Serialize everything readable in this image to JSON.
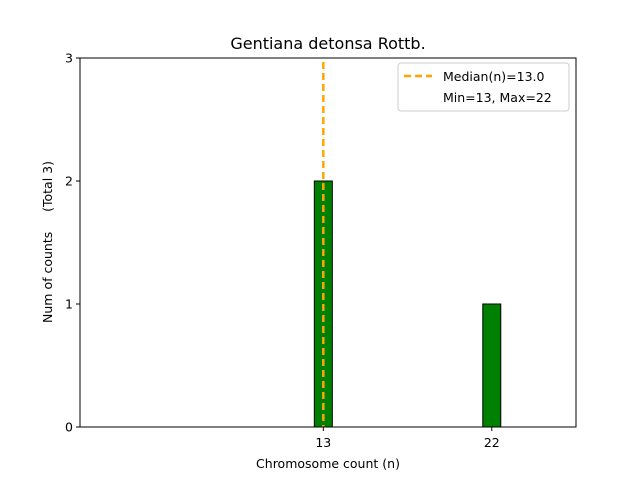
{
  "chart_data": {
    "type": "bar",
    "title": "Gentiana detonsa Rottb.",
    "xlabel": "Chromosome count (n)",
    "ylabel": "Num of counts     (Total 3)",
    "x_ticks": [
      13,
      22
    ],
    "x_range": [
      0,
      26.5
    ],
    "ylim": [
      0,
      3
    ],
    "y_ticks": [
      0,
      1,
      2,
      3
    ],
    "bars": [
      {
        "x": 13,
        "value": 2
      },
      {
        "x": 22,
        "value": 1
      }
    ],
    "median_line": {
      "x": 13,
      "label": "Median(n)=13.0",
      "color": "#ffa500"
    },
    "legend": {
      "placement": "top-right",
      "entries": [
        "Median(n)=13.0",
        "Min=13, Max=22"
      ]
    },
    "bar_color": "#008000",
    "grid": false
  }
}
